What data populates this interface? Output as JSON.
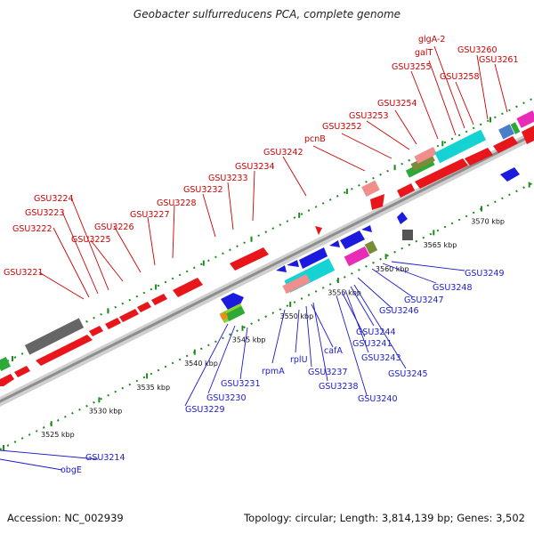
{
  "title": "Geobacter sulfurreducens PCA, complete genome",
  "footer": {
    "accession": "Accession: NC_002939",
    "topology": "Topology: circular; Length: 3,814,139 bp; Genes: 3,502"
  },
  "colors": {
    "forward": "#e8151a",
    "reverse": "#1b1be0",
    "backbone": "#a8a8a8",
    "tick": "#1d8a1d"
  },
  "scale": [
    {
      "label": "3525 kbp"
    },
    {
      "label": "3530 kbp"
    },
    {
      "label": "3535 kbp"
    },
    {
      "label": "3540 kbp"
    },
    {
      "label": "3545 kbp"
    },
    {
      "label": "3550 kbp"
    },
    {
      "label": "3555 kbp"
    },
    {
      "label": "3560 kbp"
    },
    {
      "label": "3565 kbp"
    },
    {
      "label": "3570 kbp"
    }
  ],
  "forward_labels": [
    "GSU3221",
    "GSU3222",
    "GSU3223",
    "GSU3224",
    "GSU3225",
    "GSU3226",
    "GSU3227",
    "GSU3228",
    "GSU3232",
    "GSU3233",
    "GSU3234",
    "GSU3242",
    "pcnB",
    "GSU3252",
    "GSU3253",
    "GSU3254",
    "GSU3255",
    "galT",
    "glgA-2",
    "GSU3258",
    "GSU3260",
    "GSU3261"
  ],
  "reverse_labels": [
    "GSU3214",
    "obgE",
    "GSU3229",
    "GSU3230",
    "GSU3231",
    "rpmA",
    "rplU",
    "GSU3237",
    "cafA",
    "GSU3238",
    "GSU3240",
    "GSU3241",
    "GSU3243",
    "GSU3244",
    "GSU3245",
    "GSU3246",
    "GSU3247",
    "GSU3248",
    "GSU3249"
  ]
}
